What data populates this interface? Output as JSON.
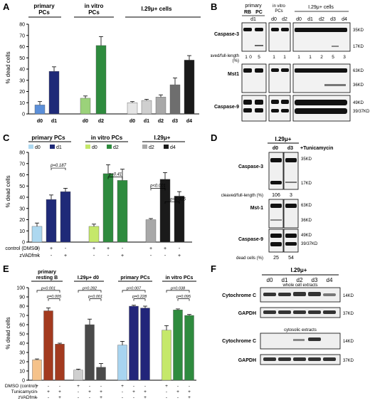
{
  "labels": {
    "A": "A",
    "B": "B",
    "C": "C",
    "D": "D",
    "E": "E",
    "F": "F"
  },
  "panelA": {
    "group_titles": [
      "primary\nPCs",
      "in vitro\nPCs",
      "I.29μ+ cells"
    ],
    "ylabel": "% dead cells",
    "yticks": [
      "0",
      "10",
      "20",
      "30",
      "40",
      "50",
      "60",
      "70",
      "80"
    ],
    "chart_data": {
      "type": "bar",
      "categories": [
        "d0",
        "d1",
        "d0",
        "d2",
        "d0",
        "d1",
        "d2",
        "d3",
        "d4"
      ],
      "values": [
        8,
        38,
        14,
        61,
        10,
        12,
        15,
        26,
        48
      ],
      "errors": [
        3,
        4,
        2,
        8,
        1,
        1,
        2,
        6,
        4
      ],
      "colors": [
        "#5b8fd9",
        "#1f2a78",
        "#9bd27a",
        "#2e8b3e",
        "#e6e6e6",
        "#cfcfcf",
        "#a8a8a8",
        "#6e6e6e",
        "#1a1a1a"
      ],
      "ylim": [
        0,
        80
      ]
    }
  },
  "panelB": {
    "group_titles": [
      "primary",
      "in vitro\nPCs",
      "I.29μ+ cells"
    ],
    "primary_lanes": [
      "RB",
      "PC"
    ],
    "primary_day": "d1",
    "invitro_lanes": [
      "d0",
      "d2"
    ],
    "i29_lanes": [
      "d0",
      "d1",
      "d2",
      "d3",
      "d4"
    ],
    "rows": [
      "Caspase-3",
      "Mst1",
      "Caspase-9"
    ],
    "cleaved_label": "cleaved/full-length\n(%)",
    "cleaved_values": [
      "1",
      "0",
      "5",
      "1",
      "1",
      "1",
      "1",
      "2",
      "5",
      "3"
    ],
    "kd": {
      "casp3": [
        "35KD",
        "17KD"
      ],
      "mst1": [
        "63KD",
        "36KD"
      ],
      "casp9": [
        "49KD",
        "39/37KD"
      ]
    }
  },
  "panelC": {
    "group_titles": [
      "primary PCs",
      "in vitro PCs",
      "I.29μ+"
    ],
    "legend": [
      [
        "d0",
        "d1"
      ],
      [
        "d0",
        "d2"
      ],
      [
        "d2",
        "d4"
      ]
    ],
    "ylabel": "% dead cells",
    "yticks": [
      "0",
      "10",
      "20",
      "30",
      "40",
      "50",
      "60",
      "70",
      "80"
    ],
    "pvalues": [
      "p=0.187",
      "p=0.41",
      "p<0.001",
      "p=0.005"
    ],
    "row_labels": [
      "control (DMSO)",
      "zVADfmk"
    ],
    "row_signs": [
      [
        "+",
        "+",
        "-",
        "+",
        "+",
        "-",
        "+",
        "+",
        "-"
      ],
      [
        "-",
        "-",
        "+",
        "-",
        "-",
        "+",
        "-",
        "-",
        "+"
      ]
    ],
    "chart_data": {
      "type": "bar",
      "categories": [
        "primary d0",
        "primary d1",
        "primary d1+zVAD",
        "in vitro d0",
        "in vitro d2",
        "in vitro d2+zVAD",
        "I.29 d2",
        "I.29 d4",
        "I.29 d4+zVAD"
      ],
      "values": [
        14,
        38,
        45,
        14,
        61,
        55,
        20,
        56,
        41
      ],
      "errors": [
        3,
        4,
        3,
        2,
        8,
        10,
        1,
        6,
        4
      ],
      "colors": [
        "#add8f0",
        "#1f2a78",
        "#1f2a78",
        "#c5e86a",
        "#2e8b3e",
        "#2e8b3e",
        "#a8a8a8",
        "#1a1a1a",
        "#1a1a1a"
      ],
      "ylim": [
        0,
        80
      ]
    }
  },
  "panelD": {
    "title": "I.29μ+",
    "tunicamycin": "+Tunicamycin",
    "lanes": [
      "d0",
      "d3"
    ],
    "rows": [
      "Caspase-3",
      "Mst-1",
      "Caspase-9"
    ],
    "cleaved_label": "cleaved/full-length (%)",
    "cleaved_values": [
      "106",
      "3"
    ],
    "dead_label": "dead cells (%)",
    "dead_values": [
      "25",
      "54"
    ],
    "kd": {
      "casp3": [
        "35KD",
        "17KD"
      ],
      "mst1": [
        "63KD",
        "36KD"
      ],
      "casp9": [
        "49KD",
        "39/37KD"
      ]
    }
  },
  "panelE": {
    "group_titles": [
      "primary\nresting B",
      "I.29μ+  d0",
      "primary PCs",
      "in vitro PCs"
    ],
    "ylabel": "% dead cells",
    "yticks": [
      "0",
      "10",
      "20",
      "30",
      "40",
      "50",
      "60",
      "70",
      "80",
      "90",
      "100"
    ],
    "pvalues": [
      "p<0.001",
      "p=0.005",
      "p=0.282",
      "p<0.001",
      "p=0.007",
      "p=0.228",
      "p=0.038",
      "p=0.095"
    ],
    "row_labels": [
      "DMSO (control)",
      "Tunicamycin",
      "zVADfmk"
    ],
    "row_signs": [
      [
        "+",
        "-",
        "-",
        "+",
        "-",
        "-",
        "+",
        "-",
        "-",
        "+",
        "-",
        "-"
      ],
      [
        "-",
        "+",
        "+",
        "-",
        "+",
        "+",
        "-",
        "+",
        "+",
        "-",
        "+",
        "+"
      ],
      [
        "-",
        "-",
        "+",
        "-",
        "-",
        "+",
        "-",
        "-",
        "+",
        "-",
        "-",
        "+"
      ]
    ],
    "chart_data": {
      "type": "bar",
      "categories": [
        "resting B ctrl",
        "resting B Tun",
        "resting B Tun+zVAD",
        "I.29 d0 ctrl",
        "I.29 d0 Tun",
        "I.29 d0 Tun+zVAD",
        "primary PCs ctrl",
        "primary PCs Tun",
        "primary PCs Tun+zVAD",
        "in vitro PCs ctrl",
        "in vitro PCs Tun",
        "in vitro PCs Tun+zVAD"
      ],
      "values": [
        22,
        75,
        39,
        11,
        60,
        14,
        38,
        80,
        78,
        54,
        76,
        70
      ],
      "errors": [
        1,
        3,
        1,
        1,
        6,
        4,
        4,
        1,
        2,
        5,
        1,
        1
      ],
      "colors": [
        "#f5c28a",
        "#a33a1f",
        "#a33a1f",
        "#cfcfcf",
        "#4a4a4a",
        "#4a4a4a",
        "#a8d4f0",
        "#22257a",
        "#22257a",
        "#c5e86a",
        "#2e8b3e",
        "#2e8b3e"
      ],
      "ylim": [
        0,
        100
      ]
    }
  },
  "panelF": {
    "title": "I.29μ+",
    "lanes": [
      "d0",
      "d1",
      "d2",
      "d3",
      "d4"
    ],
    "whole": "whole cell extracts",
    "cytosolic": "cytosolic extracts",
    "rows": [
      "Cytochrome C",
      "GAPDH",
      "Cytochrome C",
      "GAPDH"
    ],
    "kd": [
      "14KD",
      "37KD",
      "14KD",
      "37KD"
    ]
  }
}
